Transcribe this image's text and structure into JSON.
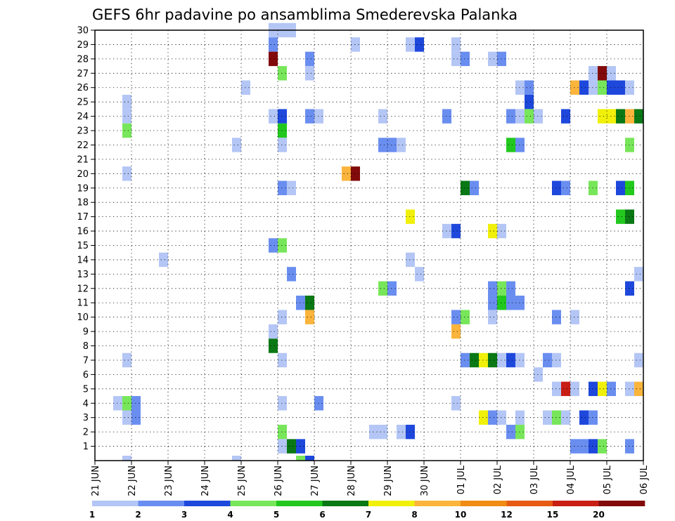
{
  "chart_data": {
    "type": "heatmap",
    "title": "GEFS 6hr padavine po ansamblima Smederevska Palanka",
    "xlabel": "",
    "ylabel": "",
    "x_ticks": [
      "21 JUN",
      "22 JUN",
      "23 JUN",
      "24 JUN",
      "25 JUN",
      "26 JUN",
      "27 JUN",
      "28 JUN",
      "29 JUN",
      "30 JUN",
      "01 JUL",
      "02 JUL",
      "03 JUL",
      "04 JUL",
      "05 JUL",
      "06 JUL"
    ],
    "y_ticks": [
      "1",
      "2",
      "3",
      "4",
      "5",
      "6",
      "7",
      "8",
      "9",
      "10",
      "11",
      "12",
      "13",
      "14",
      "15",
      "16",
      "17",
      "18",
      "19",
      "20",
      "21",
      "22",
      "23",
      "24",
      "25",
      "26",
      "27",
      "28",
      "29",
      "30"
    ],
    "x_range_steps_6h": [
      0,
      60
    ],
    "members": 30,
    "grid": true,
    "colorbar": {
      "levels": [
        "1",
        "2",
        "3",
        "4",
        "5",
        "6",
        "7",
        "8",
        "10",
        "12",
        "15",
        "20"
      ],
      "colors": [
        "#b4c6f5",
        "#6a8ef0",
        "#1e48dc",
        "#78e65a",
        "#22c81e",
        "#0a7814",
        "#f0f00a",
        "#fbb43c",
        "#f08c14",
        "#e65a14",
        "#c81e14",
        "#820a0a"
      ]
    },
    "cells": [
      {
        "m": 30,
        "t": "25 JUN 18",
        "c": 1
      },
      {
        "m": 30,
        "t": "26 JUN 00",
        "c": 1
      },
      {
        "m": 30,
        "t": "26 JUN 06",
        "c": 1
      },
      {
        "m": 29,
        "t": "25 JUN 18",
        "c": 2
      },
      {
        "m": 29,
        "t": "28 JUN 00",
        "c": 1
      },
      {
        "m": 29,
        "t": "29 JUN 12",
        "c": 1
      },
      {
        "m": 29,
        "t": "29 JUN 18",
        "c": 3
      },
      {
        "m": 29,
        "t": "30 JUN 18",
        "c": 1
      },
      {
        "m": 28,
        "t": "25 JUN 18",
        "c": 12
      },
      {
        "m": 28,
        "t": "26 JUN 18",
        "c": 2
      },
      {
        "m": 28,
        "t": "30 JUN 18",
        "c": 1
      },
      {
        "m": 28,
        "t": "01 JUL 00",
        "c": 2
      },
      {
        "m": 28,
        "t": "01 JUL 18",
        "c": 1
      },
      {
        "m": 28,
        "t": "02 JUL 00",
        "c": 2
      },
      {
        "m": 27,
        "t": "26 JUN 00",
        "c": 4
      },
      {
        "m": 27,
        "t": "26 JUN 18",
        "c": 1
      },
      {
        "m": 27,
        "t": "04 JUL 12",
        "c": 1
      },
      {
        "m": 27,
        "t": "04 JUL 18",
        "c": 12
      },
      {
        "m": 27,
        "t": "05 JUL 00",
        "c": 1
      },
      {
        "m": 26,
        "t": "25 JUN 00",
        "c": 1
      },
      {
        "m": 26,
        "t": "02 JUL 12",
        "c": 1
      },
      {
        "m": 26,
        "t": "02 JUL 18",
        "c": 2
      },
      {
        "m": 26,
        "t": "04 JUL 00",
        "c": 8
      },
      {
        "m": 26,
        "t": "04 JUL 06",
        "c": 3
      },
      {
        "m": 26,
        "t": "04 JUL 12",
        "c": 1
      },
      {
        "m": 26,
        "t": "04 JUL 18",
        "c": 4
      },
      {
        "m": 26,
        "t": "05 JUL 00",
        "c": 3
      },
      {
        "m": 26,
        "t": "05 JUL 06",
        "c": 3
      },
      {
        "m": 26,
        "t": "05 JUL 12",
        "c": 1
      },
      {
        "m": 25,
        "t": "21 JUN 18",
        "c": 1
      },
      {
        "m": 25,
        "t": "02 JUL 18",
        "c": 3
      },
      {
        "m": 24,
        "t": "21 JUN 18",
        "c": 1
      },
      {
        "m": 24,
        "t": "25 JUN 18",
        "c": 1
      },
      {
        "m": 24,
        "t": "26 JUN 00",
        "c": 3
      },
      {
        "m": 24,
        "t": "26 JUN 18",
        "c": 2
      },
      {
        "m": 24,
        "t": "27 JUN 00",
        "c": 1
      },
      {
        "m": 24,
        "t": "28 JUN 18",
        "c": 1
      },
      {
        "m": 24,
        "t": "30 JUN 12",
        "c": 2
      },
      {
        "m": 24,
        "t": "02 JUL 06",
        "c": 2
      },
      {
        "m": 24,
        "t": "02 JUL 12",
        "c": 1
      },
      {
        "m": 24,
        "t": "02 JUL 18",
        "c": 4
      },
      {
        "m": 24,
        "t": "03 JUL 00",
        "c": 1
      },
      {
        "m": 24,
        "t": "03 JUL 18",
        "c": 3
      },
      {
        "m": 24,
        "t": "04 JUL 18",
        "c": 7
      },
      {
        "m": 24,
        "t": "05 JUL 00",
        "c": 7
      },
      {
        "m": 24,
        "t": "05 JUL 06",
        "c": 6
      },
      {
        "m": 24,
        "t": "05 JUL 12",
        "c": 8
      },
      {
        "m": 24,
        "t": "05 JUL 18",
        "c": 6
      },
      {
        "m": 23,
        "t": "21 JUN 18",
        "c": 4
      },
      {
        "m": 23,
        "t": "26 JUN 00",
        "c": 5
      },
      {
        "m": 22,
        "t": "24 JUN 18",
        "c": 1
      },
      {
        "m": 22,
        "t": "26 JUN 00",
        "c": 1
      },
      {
        "m": 22,
        "t": "28 JUN 18",
        "c": 2
      },
      {
        "m": 22,
        "t": "29 JUN 00",
        "c": 2
      },
      {
        "m": 22,
        "t": "29 JUN 06",
        "c": 1
      },
      {
        "m": 22,
        "t": "02 JUL 06",
        "c": 5
      },
      {
        "m": 22,
        "t": "02 JUL 12",
        "c": 2
      },
      {
        "m": 22,
        "t": "05 JUL 12",
        "c": 4
      },
      {
        "m": 20,
        "t": "21 JUN 18",
        "c": 1
      },
      {
        "m": 20,
        "t": "27 JUN 18",
        "c": 8
      },
      {
        "m": 20,
        "t": "28 JUN 00",
        "c": 12
      },
      {
        "m": 19,
        "t": "26 JUN 00",
        "c": 2
      },
      {
        "m": 19,
        "t": "26 JUN 06",
        "c": 1
      },
      {
        "m": 19,
        "t": "01 JUL 00",
        "c": 6
      },
      {
        "m": 19,
        "t": "01 JUL 06",
        "c": 2
      },
      {
        "m": 19,
        "t": "03 JUL 12",
        "c": 3
      },
      {
        "m": 19,
        "t": "03 JUL 18",
        "c": 2
      },
      {
        "m": 19,
        "t": "04 JUL 12",
        "c": 4
      },
      {
        "m": 19,
        "t": "05 JUL 06",
        "c": 3
      },
      {
        "m": 19,
        "t": "05 JUL 12",
        "c": 5
      },
      {
        "m": 17,
        "t": "29 JUN 12",
        "c": 7
      },
      {
        "m": 17,
        "t": "05 JUL 06",
        "c": 5
      },
      {
        "m": 17,
        "t": "05 JUL 12",
        "c": 6
      },
      {
        "m": 16,
        "t": "30 JUN 12",
        "c": 1
      },
      {
        "m": 16,
        "t": "30 JUN 18",
        "c": 3
      },
      {
        "m": 16,
        "t": "01 JUL 18",
        "c": 7
      },
      {
        "m": 16,
        "t": "02 JUL 00",
        "c": 1
      },
      {
        "m": 15,
        "t": "25 JUN 18",
        "c": 2
      },
      {
        "m": 15,
        "t": "26 JUN 00",
        "c": 4
      },
      {
        "m": 14,
        "t": "22 JUN 18",
        "c": 1
      },
      {
        "m": 14,
        "t": "29 JUN 12",
        "c": 1
      },
      {
        "m": 13,
        "t": "26 JUN 06",
        "c": 2
      },
      {
        "m": 13,
        "t": "29 JUN 18",
        "c": 1
      },
      {
        "m": 13,
        "t": "05 JUL 18",
        "c": 1
      },
      {
        "m": 12,
        "t": "28 JUN 18",
        "c": 4
      },
      {
        "m": 12,
        "t": "29 JUN 00",
        "c": 2
      },
      {
        "m": 12,
        "t": "01 JUL 18",
        "c": 2
      },
      {
        "m": 12,
        "t": "02 JUL 00",
        "c": 4
      },
      {
        "m": 12,
        "t": "02 JUL 06",
        "c": 2
      },
      {
        "m": 12,
        "t": "05 JUL 12",
        "c": 3
      },
      {
        "m": 11,
        "t": "26 JUN 12",
        "c": 2
      },
      {
        "m": 11,
        "t": "26 JUN 18",
        "c": 6
      },
      {
        "m": 11,
        "t": "01 JUL 18",
        "c": 2
      },
      {
        "m": 11,
        "t": "02 JUL 00",
        "c": 5
      },
      {
        "m": 11,
        "t": "02 JUL 06",
        "c": 2
      },
      {
        "m": 11,
        "t": "02 JUL 12",
        "c": 2
      },
      {
        "m": 10,
        "t": "26 JUN 00",
        "c": 1
      },
      {
        "m": 10,
        "t": "26 JUN 18",
        "c": 8
      },
      {
        "m": 10,
        "t": "30 JUN 18",
        "c": 2
      },
      {
        "m": 10,
        "t": "01 JUL 00",
        "c": 4
      },
      {
        "m": 10,
        "t": "01 JUL 18",
        "c": 1
      },
      {
        "m": 10,
        "t": "03 JUL 12",
        "c": 2
      },
      {
        "m": 10,
        "t": "04 JUL 00",
        "c": 1
      },
      {
        "m": 9,
        "t": "25 JUN 18",
        "c": 1
      },
      {
        "m": 9,
        "t": "30 JUN 18",
        "c": 8
      },
      {
        "m": 8,
        "t": "25 JUN 18",
        "c": 6
      },
      {
        "m": 7,
        "t": "21 JUN 18",
        "c": 1
      },
      {
        "m": 7,
        "t": "26 JUN 00",
        "c": 1
      },
      {
        "m": 7,
        "t": "01 JUL 00",
        "c": 2
      },
      {
        "m": 7,
        "t": "01 JUL 06",
        "c": 6
      },
      {
        "m": 7,
        "t": "01 JUL 12",
        "c": 7
      },
      {
        "m": 7,
        "t": "01 JUL 18",
        "c": 6
      },
      {
        "m": 7,
        "t": "02 JUL 00",
        "c": 1
      },
      {
        "m": 7,
        "t": "02 JUL 06",
        "c": 3
      },
      {
        "m": 7,
        "t": "02 JUL 12",
        "c": 1
      },
      {
        "m": 7,
        "t": "03 JUL 06",
        "c": 2
      },
      {
        "m": 7,
        "t": "03 JUL 12",
        "c": 1
      },
      {
        "m": 7,
        "t": "05 JUL 18",
        "c": 1
      },
      {
        "m": 6,
        "t": "03 JUL 00",
        "c": 1
      },
      {
        "m": 5,
        "t": "03 JUL 12",
        "c": 1
      },
      {
        "m": 5,
        "t": "03 JUL 18",
        "c": 11
      },
      {
        "m": 5,
        "t": "04 JUL 00",
        "c": 1
      },
      {
        "m": 5,
        "t": "04 JUL 12",
        "c": 3
      },
      {
        "m": 5,
        "t": "04 JUL 18",
        "c": 7
      },
      {
        "m": 5,
        "t": "05 JUL 00",
        "c": 2
      },
      {
        "m": 5,
        "t": "05 JUL 12",
        "c": 1
      },
      {
        "m": 5,
        "t": "05 JUL 18",
        "c": 8
      },
      {
        "m": 4,
        "t": "21 JUN 12",
        "c": 1
      },
      {
        "m": 4,
        "t": "21 JUN 18",
        "c": 4
      },
      {
        "m": 4,
        "t": "22 JUN 00",
        "c": 2
      },
      {
        "m": 4,
        "t": "26 JUN 00",
        "c": 1
      },
      {
        "m": 4,
        "t": "27 JUN 00",
        "c": 2
      },
      {
        "m": 4,
        "t": "30 JUN 18",
        "c": 1
      },
      {
        "m": 3,
        "t": "21 JUN 18",
        "c": 1
      },
      {
        "m": 3,
        "t": "22 JUN 00",
        "c": 2
      },
      {
        "m": 3,
        "t": "01 JUL 12",
        "c": 7
      },
      {
        "m": 3,
        "t": "01 JUL 18",
        "c": 2
      },
      {
        "m": 3,
        "t": "02 JUL 00",
        "c": 1
      },
      {
        "m": 3,
        "t": "02 JUL 12",
        "c": 1
      },
      {
        "m": 3,
        "t": "03 JUL 06",
        "c": 1
      },
      {
        "m": 3,
        "t": "03 JUL 12",
        "c": 4
      },
      {
        "m": 3,
        "t": "03 JUL 18",
        "c": 1
      },
      {
        "m": 3,
        "t": "04 JUL 06",
        "c": 3
      },
      {
        "m": 3,
        "t": "04 JUL 12",
        "c": 2
      },
      {
        "m": 2,
        "t": "26 JUN 00",
        "c": 4
      },
      {
        "m": 2,
        "t": "28 JUN 12",
        "c": 1
      },
      {
        "m": 2,
        "t": "28 JUN 18",
        "c": 1
      },
      {
        "m": 2,
        "t": "29 JUN 06",
        "c": 1
      },
      {
        "m": 2,
        "t": "29 JUN 12",
        "c": 3
      },
      {
        "m": 2,
        "t": "02 JUL 06",
        "c": 2
      },
      {
        "m": 2,
        "t": "02 JUL 12",
        "c": 4
      },
      {
        "m": 1,
        "t": "26 JUN 00",
        "c": 1
      },
      {
        "m": 1,
        "t": "26 JUN 06",
        "c": 6
      },
      {
        "m": 1,
        "t": "26 JUN 12",
        "c": 3
      },
      {
        "m": 1,
        "t": "04 JUL 00",
        "c": 2
      },
      {
        "m": 1,
        "t": "04 JUL 06",
        "c": 2
      },
      {
        "m": 1,
        "t": "04 JUL 12",
        "c": 3
      },
      {
        "m": 1,
        "t": "04 JUL 18",
        "c": 4
      },
      {
        "m": 1,
        "t": "05 JUL 12",
        "c": 2
      },
      {
        "m": 0,
        "t": "21 JUN 18",
        "c": 1
      },
      {
        "m": 0,
        "t": "24 JUN 18",
        "c": 1
      },
      {
        "m": 0,
        "t": "26 JUN 12",
        "c": 4
      },
      {
        "m": 0,
        "t": "26 JUN 18",
        "c": 3
      }
    ]
  }
}
